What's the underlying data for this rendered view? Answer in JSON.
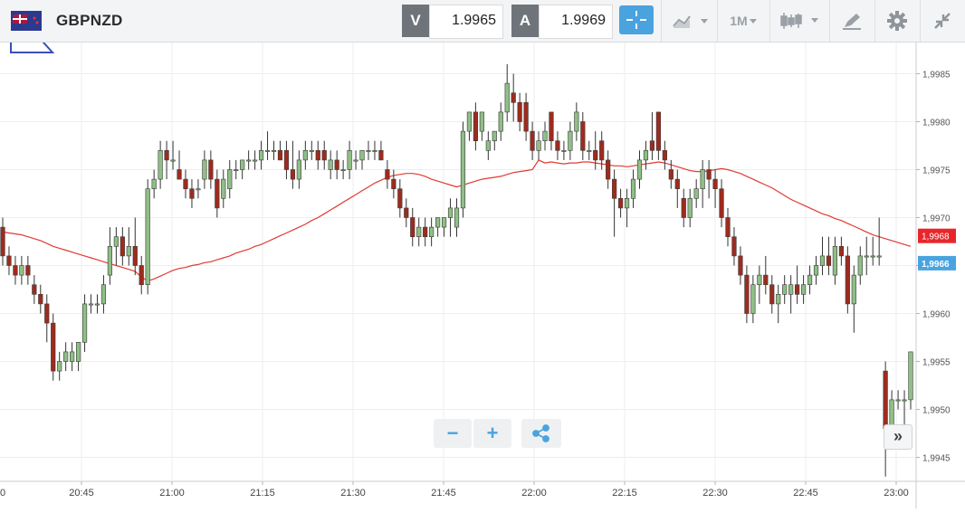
{
  "header": {
    "symbol": "GBPNZD",
    "sell_tag": "V",
    "sell_price": "1.9965",
    "buy_tag": "A",
    "buy_price": "1.9969",
    "timeframe": "1M"
  },
  "icons": {
    "flag": "gb-nz-flag-icon",
    "crosshair": "crosshair-icon",
    "chart_type": "line-chart-icon",
    "candles": "candlestick-icon",
    "draw": "pencil-icon",
    "settings": "gear-icon",
    "fullscreen": "collapse-icon",
    "share": "share-icon"
  },
  "colors": {
    "bull": "#8fbf86",
    "bear": "#9e2b1e",
    "ma": "#e03a32",
    "bid_tag": "#e8262a",
    "ask_tag": "#4aa3df"
  },
  "controls": {
    "zoom_out": "−",
    "zoom_in": "+",
    "scroll_latest": "»"
  },
  "chart_data": {
    "type": "candlestick",
    "y_ticks": [
      "1,9945",
      "1,9950",
      "1,9955",
      "1,9960",
      "1,9965",
      "1,9970",
      "1,9975",
      "1,9980",
      "1,9985"
    ],
    "x_ticks": [
      "20:45",
      "21:00",
      "21:15",
      "21:30",
      "21:45",
      "22:00",
      "22:15",
      "22:30",
      "22:45",
      "23:00"
    ],
    "x_edge_label": "0",
    "ylim": [
      1.99425,
      1.99875
    ],
    "bid_label": "1,9968",
    "ask_label": "1,9966",
    "candles": [
      [
        1.9969,
        1.997,
        1.9965,
        1.9966
      ],
      [
        1.9966,
        1.9967,
        1.9964,
        1.9965
      ],
      [
        1.9965,
        1.9966,
        1.9963,
        1.9964
      ],
      [
        1.9964,
        1.9966,
        1.9963,
        1.9965
      ],
      [
        1.9965,
        1.9966,
        1.9963,
        1.9964
      ],
      [
        1.9963,
        1.9964,
        1.9961,
        1.9962
      ],
      [
        1.9962,
        1.9963,
        1.996,
        1.9961
      ],
      [
        1.9961,
        1.9962,
        1.9957,
        1.9959
      ],
      [
        1.9959,
        1.996,
        1.9953,
        1.9954
      ],
      [
        1.9954,
        1.9956,
        1.9953,
        1.9955
      ],
      [
        1.9955,
        1.9957,
        1.9954,
        1.9956
      ],
      [
        1.9955,
        1.9957,
        1.9954,
        1.9956
      ],
      [
        1.9955,
        1.9957,
        1.9954,
        1.9957
      ],
      [
        1.9957,
        1.9962,
        1.9956,
        1.9961
      ],
      [
        1.9961,
        1.9962,
        1.996,
        1.9961
      ],
      [
        1.9961,
        1.9962,
        1.996,
        1.9961
      ],
      [
        1.9961,
        1.9964,
        1.996,
        1.9963
      ],
      [
        1.9964,
        1.9969,
        1.9963,
        1.9967
      ],
      [
        1.9967,
        1.9969,
        1.9965,
        1.9968
      ],
      [
        1.9968,
        1.9969,
        1.9965,
        1.9966
      ],
      [
        1.9966,
        1.9969,
        1.9965,
        1.9967
      ],
      [
        1.9967,
        1.997,
        1.9964,
        1.9965
      ],
      [
        1.9965,
        1.9966,
        1.9962,
        1.9963
      ],
      [
        1.9963,
        1.9974,
        1.9962,
        1.9973
      ],
      [
        1.9973,
        1.9975,
        1.9972,
        1.9974
      ],
      [
        1.9974,
        1.9978,
        1.9973,
        1.9977
      ],
      [
        1.9977,
        1.9978,
        1.9974,
        1.9976
      ],
      [
        1.9976,
        1.9978,
        1.9975,
        1.9976
      ],
      [
        1.9975,
        1.9977,
        1.9974,
        1.9974
      ],
      [
        1.9974,
        1.9975,
        1.9972,
        1.9973
      ],
      [
        1.9973,
        1.9974,
        1.9971,
        1.9972
      ],
      [
        1.9973,
        1.9974,
        1.9972,
        1.9973
      ],
      [
        1.9974,
        1.9977,
        1.9973,
        1.9976
      ],
      [
        1.9976,
        1.9977,
        1.9973,
        1.9974
      ],
      [
        1.9974,
        1.9975,
        1.997,
        1.9971
      ],
      [
        1.9972,
        1.9975,
        1.9971,
        1.9974
      ],
      [
        1.9973,
        1.9976,
        1.9972,
        1.9975
      ],
      [
        1.9975,
        1.9976,
        1.9974,
        1.9975
      ],
      [
        1.9975,
        1.9976,
        1.9974,
        1.9976
      ],
      [
        1.9976,
        1.9977,
        1.9975,
        1.9976
      ],
      [
        1.9976,
        1.9977,
        1.9975,
        1.9976
      ],
      [
        1.9976,
        1.9978,
        1.9975,
        1.9977
      ],
      [
        1.9977,
        1.9979,
        1.9976,
        1.9977
      ],
      [
        1.9977,
        1.9978,
        1.9976,
        1.9977
      ],
      [
        1.9977,
        1.9978,
        1.9976,
        1.9976
      ],
      [
        1.9977,
        1.9978,
        1.9974,
        1.9975
      ],
      [
        1.9975,
        1.9978,
        1.9973,
        1.9974
      ],
      [
        1.9974,
        1.9977,
        1.9973,
        1.9976
      ],
      [
        1.9976,
        1.9978,
        1.9975,
        1.9977
      ],
      [
        1.9977,
        1.9978,
        1.9976,
        1.9977
      ],
      [
        1.9977,
        1.9978,
        1.9975,
        1.9976
      ],
      [
        1.9977,
        1.9978,
        1.9975,
        1.9976
      ],
      [
        1.9975,
        1.9977,
        1.9974,
        1.9976
      ],
      [
        1.9976,
        1.9977,
        1.9974,
        1.9975
      ],
      [
        1.9975,
        1.9976,
        1.9974,
        1.9975
      ],
      [
        1.9975,
        1.9978,
        1.9974,
        1.9977
      ],
      [
        1.9976,
        1.9977,
        1.9975,
        1.9976
      ],
      [
        1.9976,
        1.9977,
        1.9975,
        1.9977
      ],
      [
        1.9977,
        1.9978,
        1.9976,
        1.9977
      ],
      [
        1.9977,
        1.9978,
        1.9976,
        1.9977
      ],
      [
        1.9977,
        1.9978,
        1.9976,
        1.9976
      ],
      [
        1.9975,
        1.9976,
        1.9973,
        1.9974
      ],
      [
        1.9974,
        1.9975,
        1.9972,
        1.9973
      ],
      [
        1.9973,
        1.9974,
        1.997,
        1.9971
      ],
      [
        1.9971,
        1.9972,
        1.9969,
        1.997
      ],
      [
        1.997,
        1.9971,
        1.9967,
        1.9968
      ],
      [
        1.9968,
        1.997,
        1.9967,
        1.9969
      ],
      [
        1.9969,
        1.997,
        1.9967,
        1.9968
      ],
      [
        1.9968,
        1.997,
        1.9967,
        1.9969
      ],
      [
        1.9969,
        1.997,
        1.9968,
        1.997
      ],
      [
        1.9969,
        1.997,
        1.9968,
        1.997
      ],
      [
        1.997,
        1.9972,
        1.9968,
        1.9971
      ],
      [
        1.9969,
        1.9972,
        1.9968,
        1.9971
      ],
      [
        1.9971,
        1.998,
        1.997,
        1.9979
      ],
      [
        1.9979,
        1.9981,
        1.9978,
        1.9981
      ],
      [
        1.9981,
        1.9982,
        1.9977,
        1.9978
      ],
      [
        1.9979,
        1.9981,
        1.9978,
        1.9981
      ],
      [
        1.9977,
        1.9979,
        1.9976,
        1.9978
      ],
      [
        1.9978,
        1.9979,
        1.9977,
        1.9979
      ],
      [
        1.9979,
        1.9982,
        1.9978,
        1.9981
      ],
      [
        1.9981,
        1.9986,
        1.998,
        1.9984
      ],
      [
        1.9983,
        1.9985,
        1.998,
        1.9982
      ],
      [
        1.9982,
        1.9983,
        1.9979,
        1.998
      ],
      [
        1.9982,
        1.9983,
        1.9978,
        1.9979
      ],
      [
        1.9979,
        1.998,
        1.9976,
        1.9977
      ],
      [
        1.9977,
        1.9979,
        1.9976,
        1.9978
      ],
      [
        1.9978,
        1.998,
        1.9977,
        1.9979
      ],
      [
        1.9981,
        1.9981,
        1.9977,
        1.9978
      ],
      [
        1.9978,
        1.9979,
        1.9976,
        1.9977
      ],
      [
        1.9977,
        1.9978,
        1.9976,
        1.9977
      ],
      [
        1.9977,
        1.998,
        1.9976,
        1.9979
      ],
      [
        1.9979,
        1.9982,
        1.9978,
        1.9981
      ],
      [
        1.998,
        1.9981,
        1.9976,
        1.9977
      ],
      [
        1.9977,
        1.9978,
        1.9976,
        1.9977
      ],
      [
        1.9977,
        1.9979,
        1.9975,
        1.9976
      ],
      [
        1.9978,
        1.9979,
        1.9975,
        1.9976
      ],
      [
        1.9976,
        1.9977,
        1.9973,
        1.9974
      ],
      [
        1.9974,
        1.9975,
        1.9968,
        1.9972
      ],
      [
        1.9972,
        1.9973,
        1.997,
        1.9971
      ],
      [
        1.9971,
        1.9973,
        1.9969,
        1.9972
      ],
      [
        1.9972,
        1.9975,
        1.9971,
        1.9974
      ],
      [
        1.9974,
        1.9977,
        1.9973,
        1.9976
      ],
      [
        1.9976,
        1.9978,
        1.9975,
        1.9977
      ],
      [
        1.9978,
        1.9981,
        1.9976,
        1.9977
      ],
      [
        1.9981,
        1.9981,
        1.9976,
        1.9977
      ],
      [
        1.9977,
        1.9978,
        1.9975,
        1.9976
      ],
      [
        1.9975,
        1.9976,
        1.9973,
        1.9974
      ],
      [
        1.9974,
        1.9975,
        1.9971,
        1.9973
      ],
      [
        1.9972,
        1.9973,
        1.9969,
        1.997
      ],
      [
        1.997,
        1.9973,
        1.9969,
        1.9972
      ],
      [
        1.9972,
        1.9974,
        1.9971,
        1.9973
      ],
      [
        1.9973,
        1.9976,
        1.9971,
        1.9975
      ],
      [
        1.9975,
        1.9976,
        1.9972,
        1.9974
      ],
      [
        1.9974,
        1.9975,
        1.9971,
        1.9973
      ],
      [
        1.9973,
        1.9974,
        1.9969,
        1.997
      ],
      [
        1.997,
        1.9971,
        1.9967,
        1.9968
      ],
      [
        1.9968,
        1.9969,
        1.9965,
        1.9966
      ],
      [
        1.9966,
        1.9967,
        1.9963,
        1.9964
      ],
      [
        1.9964,
        1.9965,
        1.9959,
        1.996
      ],
      [
        1.996,
        1.9964,
        1.9959,
        1.9963
      ],
      [
        1.9963,
        1.9965,
        1.9961,
        1.9964
      ],
      [
        1.9964,
        1.9966,
        1.9962,
        1.9963
      ],
      [
        1.9963,
        1.9964,
        1.996,
        1.9961
      ],
      [
        1.9961,
        1.9963,
        1.9959,
        1.9962
      ],
      [
        1.9962,
        1.9964,
        1.9961,
        1.9963
      ],
      [
        1.9962,
        1.9964,
        1.996,
        1.9963
      ],
      [
        1.9963,
        1.9965,
        1.9961,
        1.9962
      ],
      [
        1.9962,
        1.9964,
        1.9961,
        1.9963
      ],
      [
        1.9963,
        1.9965,
        1.9962,
        1.9964
      ],
      [
        1.9964,
        1.9966,
        1.9963,
        1.9965
      ],
      [
        1.9965,
        1.9968,
        1.9964,
        1.9966
      ],
      [
        1.9966,
        1.9968,
        1.9964,
        1.9965
      ],
      [
        1.9964,
        1.9968,
        1.9963,
        1.9967
      ],
      [
        1.9967,
        1.9968,
        1.9965,
        1.9966
      ],
      [
        1.9966,
        1.9967,
        1.996,
        1.9961
      ],
      [
        1.9961,
        1.9965,
        1.9958,
        1.9964
      ],
      [
        1.9964,
        1.9967,
        1.9963,
        1.9966
      ],
      [
        1.9966,
        1.9968,
        1.9964,
        1.9966
      ],
      [
        1.9966,
        1.9968,
        1.9965,
        1.9966
      ],
      [
        1.9966,
        1.997,
        1.9965,
        1.9966
      ],
      [
        1.9954,
        1.9955,
        1.9943,
        1.9948
      ],
      [
        1.9948,
        1.9952,
        1.9947,
        1.9951
      ],
      [
        1.9951,
        1.9952,
        1.995,
        1.9951
      ],
      [
        1.9951,
        1.9952,
        1.9948,
        1.9951
      ],
      [
        1.9951,
        1.9956,
        1.995,
        1.9956
      ]
    ],
    "moving_average": [
      1.99685,
      1.99684,
      1.99683,
      1.99682,
      1.9968,
      1.99678,
      1.99676,
      1.99673,
      1.9967,
      1.99668,
      1.99666,
      1.99664,
      1.99662,
      1.9966,
      1.99658,
      1.99656,
      1.99654,
      1.99652,
      1.9965,
      1.99648,
      1.99646,
      1.99644,
      1.99638,
      1.99634,
      1.99636,
      1.99639,
      1.99642,
      1.99645,
      1.99647,
      1.99648,
      1.9965,
      1.99651,
      1.99653,
      1.99654,
      1.99656,
      1.99658,
      1.9966,
      1.99663,
      1.99665,
      1.99667,
      1.9967,
      1.99672,
      1.99675,
      1.99678,
      1.99681,
      1.99684,
      1.99687,
      1.9969,
      1.99693,
      1.99697,
      1.997,
      1.99704,
      1.99708,
      1.99712,
      1.99716,
      1.9972,
      1.99724,
      1.99728,
      1.99732,
      1.99736,
      1.99739,
      1.99742,
      1.99744,
      1.99745,
      1.99746,
      1.99746,
      1.99745,
      1.99743,
      1.9974,
      1.99738,
      1.99736,
      1.99734,
      1.99732,
      1.99734,
      1.99736,
      1.99738,
      1.9974,
      1.99741,
      1.99742,
      1.99743,
      1.99745,
      1.99747,
      1.99748,
      1.99749,
      1.9975,
      1.9976,
      1.99757,
      1.99758,
      1.99757,
      1.99756,
      1.99757,
      1.99757,
      1.99758,
      1.99758,
      1.99757,
      1.99756,
      1.99755,
      1.99754,
      1.99754,
      1.99753,
      1.99754,
      1.99755,
      1.99756,
      1.99757,
      1.99758,
      1.99757,
      1.99755,
      1.99753,
      1.99751,
      1.99749,
      1.99748,
      1.99748,
      1.99749,
      1.9975,
      1.99751,
      1.9975,
      1.99748,
      1.99746,
      1.99743,
      1.9974,
      1.99737,
      1.99734,
      1.99731,
      1.99727,
      1.99723,
      1.99719,
      1.99716,
      1.99713,
      1.9971,
      1.99707,
      1.99704,
      1.99702,
      1.99699,
      1.99697,
      1.99694,
      1.99691,
      1.99688,
      1.99685,
      1.99682,
      1.9968,
      1.99678,
      1.99676,
      1.99674,
      1.99672,
      1.9967
    ]
  }
}
